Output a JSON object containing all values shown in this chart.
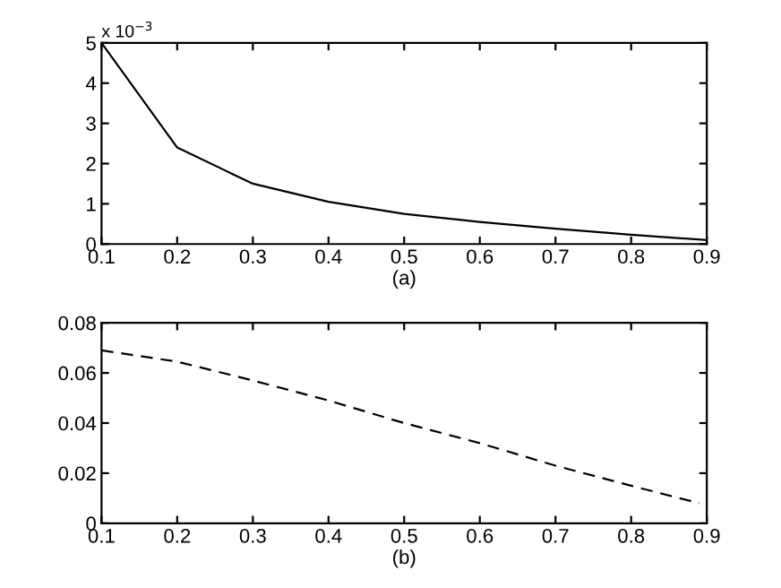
{
  "chart_data": [
    {
      "type": "line",
      "xlabel": "(a)",
      "x": [
        0.1,
        0.2,
        0.3,
        0.4,
        0.5,
        0.6,
        0.7,
        0.8,
        0.9
      ],
      "series": [
        {
          "color": "#000000",
          "values": [
            5,
            2.4,
            1.5,
            1.05,
            0.75,
            0.55,
            0.38,
            0.23,
            0.1
          ],
          "line_style": "solid"
        }
      ],
      "xlim": [
        0.1,
        0.9
      ],
      "xticks": [
        0.1,
        0.2,
        0.3,
        0.4,
        0.5,
        0.6,
        0.7,
        0.8,
        0.9
      ],
      "ylim": [
        0,
        5
      ],
      "yticks": [
        0,
        1,
        2,
        3,
        4,
        5
      ],
      "annotations": [
        "x 10$^{−3}$"
      ],
      "grid": false,
      "legend": false
    },
    {
      "type": "line",
      "xlabel": "(b)",
      "x": [
        0.1,
        0.2,
        0.3,
        0.4,
        0.5,
        0.6,
        0.7,
        0.8,
        0.89
      ],
      "series": [
        {
          "color": "#000000",
          "values": [
            0.069,
            0.0645,
            0.057,
            0.049,
            0.04,
            0.032,
            0.023,
            0.015,
            0.008
          ],
          "line_style": "dashed"
        }
      ],
      "xlim": [
        0.1,
        0.9
      ],
      "xticks": [
        0.1,
        0.2,
        0.3,
        0.4,
        0.5,
        0.6,
        0.7,
        0.8,
        0.9
      ],
      "ylim": [
        0,
        0.08
      ],
      "yticks": [
        0,
        0.02,
        0.04,
        0.06,
        0.08
      ],
      "grid": false,
      "legend": false
    }
  ]
}
